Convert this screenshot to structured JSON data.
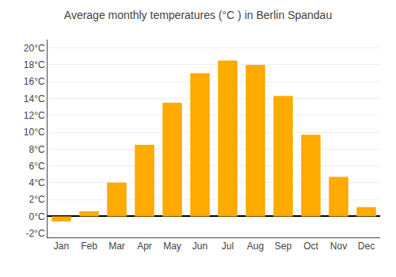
{
  "chart_data": {
    "type": "bar",
    "title": "Average monthly temperatures (°C ) in Berlin Spandau",
    "categories": [
      "Jan",
      "Feb",
      "Mar",
      "Apr",
      "May",
      "Jun",
      "Jul",
      "Aug",
      "Sep",
      "Oct",
      "Nov",
      "Dec"
    ],
    "values": [
      -0.6,
      0.6,
      4.0,
      8.5,
      13.5,
      17.0,
      18.5,
      18.0,
      14.3,
      9.7,
      4.7,
      1.1
    ],
    "color": "#FFAA00",
    "ylim": [
      -2.5,
      21
    ],
    "yticks": [
      {
        "value": -2,
        "label": "-2°C"
      },
      {
        "value": 0,
        "label": "0°C"
      },
      {
        "value": 2,
        "label": "2°C"
      },
      {
        "value": 4,
        "label": "4°C"
      },
      {
        "value": 6,
        "label": "6°C"
      },
      {
        "value": 8,
        "label": "8°C"
      },
      {
        "value": 10,
        "label": "10°C"
      },
      {
        "value": 12,
        "label": "12°C"
      },
      {
        "value": 14,
        "label": "14°C"
      },
      {
        "value": 16,
        "label": "16°C"
      },
      {
        "value": 18,
        "label": "18°C"
      },
      {
        "value": 20,
        "label": "20°C"
      }
    ],
    "grid": true
  }
}
